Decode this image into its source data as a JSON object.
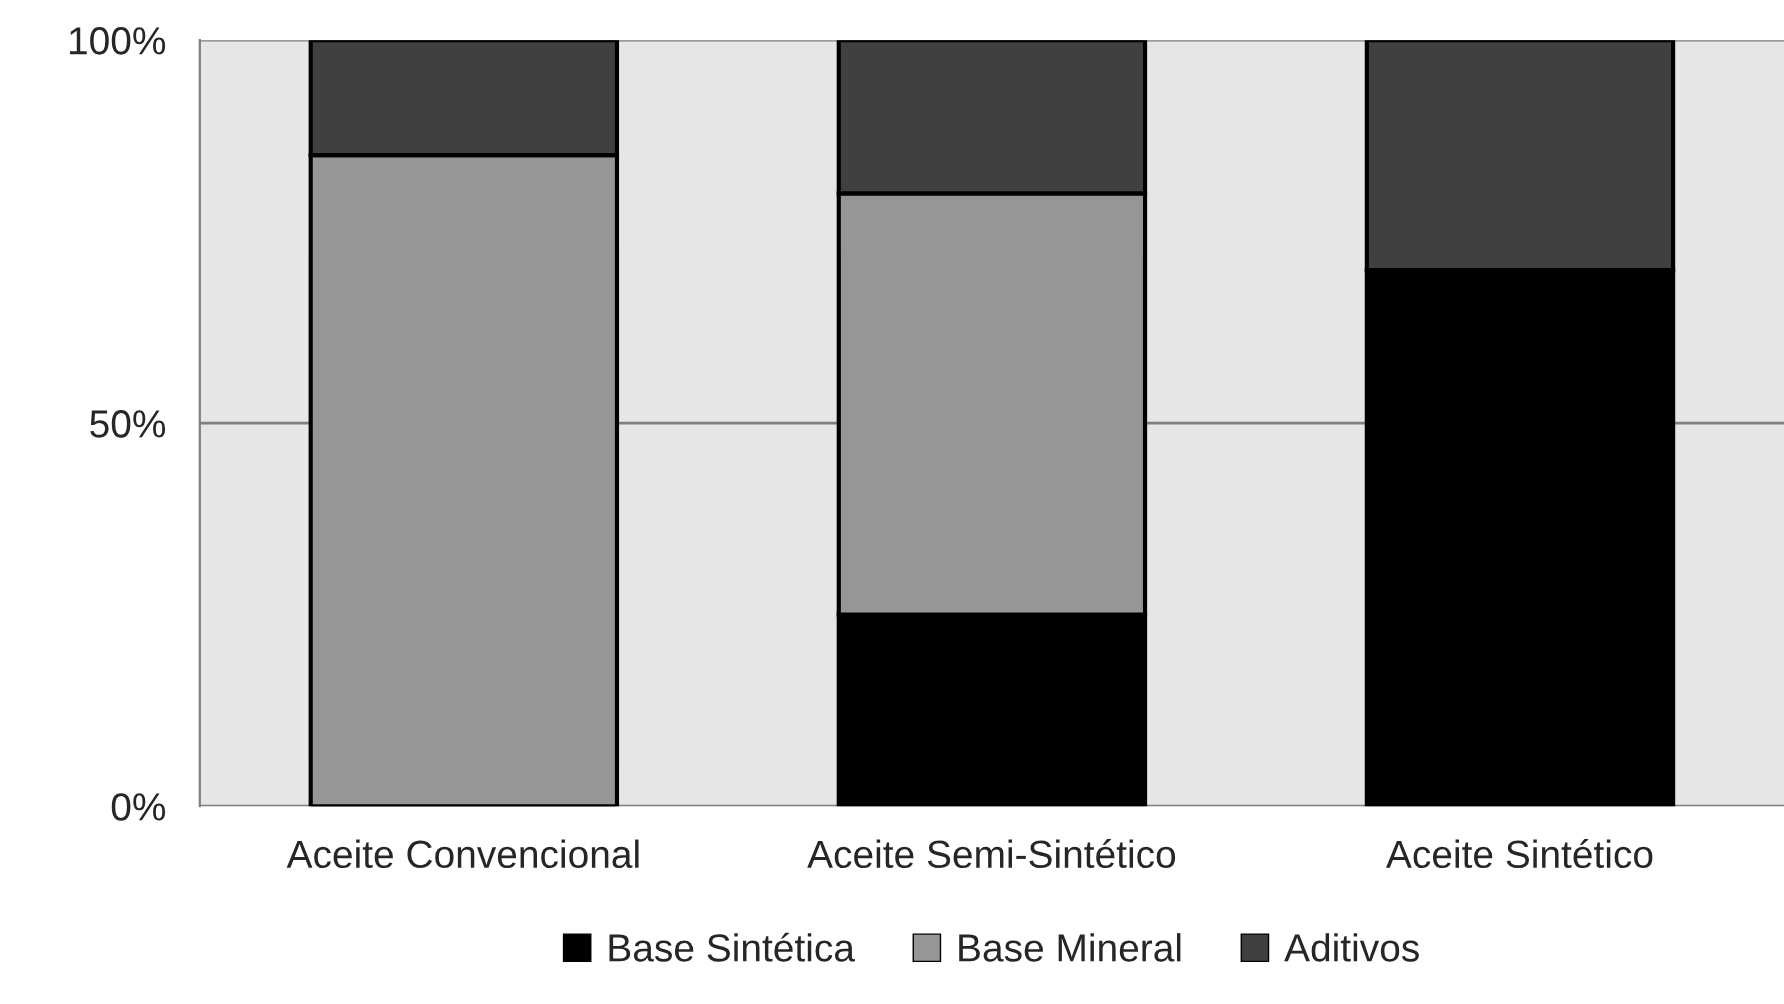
{
  "chart_data": {
    "type": "bar",
    "stacked": true,
    "categories": [
      "Aceite Convencional",
      "Aceite Semi-Sintético",
      "Aceite Sintético"
    ],
    "series": [
      {
        "name": "Base Sintética",
        "color": "#000000",
        "values": [
          0,
          25,
          70
        ]
      },
      {
        "name": "Base Mineral",
        "color": "#969696",
        "values": [
          85,
          55,
          0
        ]
      },
      {
        "name": "Aditivos",
        "color": "#404040",
        "values": [
          15,
          20,
          30
        ]
      }
    ],
    "ylim": [
      0,
      100
    ],
    "yticks": [
      {
        "value": 0,
        "label": "0%"
      },
      {
        "value": 50,
        "label": "50%"
      },
      {
        "value": 100,
        "label": "100%"
      }
    ],
    "grid": "y",
    "legend": "bottom"
  }
}
